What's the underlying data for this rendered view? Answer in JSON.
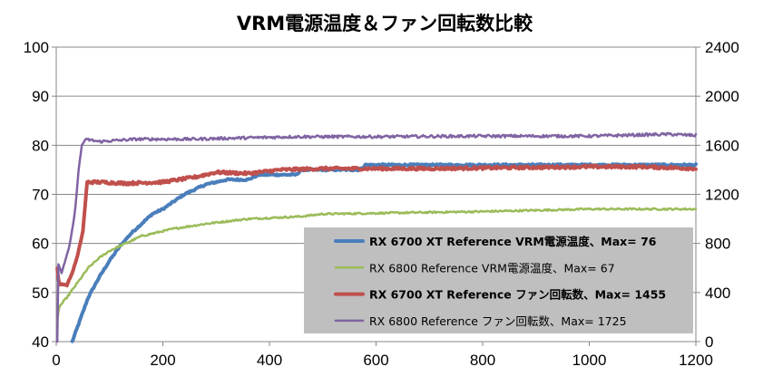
{
  "chart_data": {
    "type": "line",
    "title": "VRM電源温度＆ファン回転数比較",
    "x_axis": {
      "range": [
        0,
        1200
      ],
      "ticks": [
        "0",
        "200",
        "400",
        "600",
        "800",
        "1000",
        "1200"
      ],
      "tick_values": [
        0,
        200,
        400,
        600,
        800,
        1000,
        1200
      ]
    },
    "y_left": {
      "range": [
        40,
        100
      ],
      "ticks": [
        "40",
        "50",
        "60",
        "70",
        "80",
        "90",
        "100"
      ],
      "tick_values": [
        40,
        50,
        60,
        70,
        80,
        90,
        100
      ]
    },
    "y_right": {
      "range": [
        0,
        2400
      ],
      "ticks": [
        "0",
        "400",
        "800",
        "1200",
        "1600",
        "2000",
        "2400"
      ],
      "tick_values": [
        0,
        400,
        800,
        1200,
        1600,
        2000,
        2400
      ]
    },
    "grid": "horizontal",
    "legend_position": "bottom-right",
    "series": [
      {
        "name": "RX 6700 XT Reference VRM電源温度、Max= 76",
        "axis": "left",
        "color": "#4a7ebb",
        "bold": true,
        "stepped": true,
        "points": [
          [
            30,
            40
          ],
          [
            40,
            43
          ],
          [
            60,
            49
          ],
          [
            80,
            53
          ],
          [
            100,
            56.5
          ],
          [
            120,
            59.5
          ],
          [
            140,
            62
          ],
          [
            160,
            64
          ],
          [
            180,
            66
          ],
          [
            200,
            67
          ],
          [
            220,
            68.5
          ],
          [
            240,
            70
          ],
          [
            260,
            71
          ],
          [
            280,
            72
          ],
          [
            300,
            72.5
          ],
          [
            320,
            73
          ],
          [
            360,
            73
          ],
          [
            380,
            74
          ],
          [
            450,
            74
          ],
          [
            460,
            75
          ],
          [
            570,
            75
          ],
          [
            580,
            76
          ],
          [
            1200,
            76
          ]
        ]
      },
      {
        "name": "RX 6800 Reference VRM電源温度、Max= 67",
        "axis": "left",
        "color": "#9bbb59",
        "bold": false,
        "stepped": true,
        "points": [
          [
            2,
            44
          ],
          [
            5,
            47
          ],
          [
            20,
            49
          ],
          [
            40,
            52
          ],
          [
            60,
            55
          ],
          [
            80,
            57
          ],
          [
            100,
            58.5
          ],
          [
            120,
            59.5
          ],
          [
            140,
            60.5
          ],
          [
            160,
            61.5
          ],
          [
            180,
            62
          ],
          [
            200,
            62.5
          ],
          [
            220,
            63
          ],
          [
            250,
            63.5
          ],
          [
            280,
            64
          ],
          [
            320,
            64.5
          ],
          [
            360,
            65
          ],
          [
            460,
            65.5
          ],
          [
            500,
            66
          ],
          [
            800,
            66.5
          ],
          [
            1000,
            67
          ],
          [
            1200,
            67
          ]
        ]
      },
      {
        "name": "RX 6700 XT Reference ファン回転数、Max= 1455",
        "axis": "right",
        "color": "#c0504d",
        "bold": true,
        "stepped": false,
        "points": [
          [
            2,
            600
          ],
          [
            5,
            460
          ],
          [
            10,
            470
          ],
          [
            20,
            460
          ],
          [
            30,
            560
          ],
          [
            40,
            700
          ],
          [
            50,
            900
          ],
          [
            58,
            1300
          ],
          [
            80,
            1300
          ],
          [
            130,
            1290
          ],
          [
            200,
            1300
          ],
          [
            260,
            1340
          ],
          [
            300,
            1380
          ],
          [
            360,
            1370
          ],
          [
            420,
            1400
          ],
          [
            500,
            1410
          ],
          [
            600,
            1410
          ],
          [
            700,
            1410
          ],
          [
            800,
            1415
          ],
          [
            900,
            1420
          ],
          [
            1000,
            1425
          ],
          [
            1100,
            1425
          ],
          [
            1200,
            1410
          ]
        ]
      },
      {
        "name": "RX 6800 Reference ファン回転数、Max= 1725",
        "axis": "right",
        "color": "#8064a2",
        "bold": false,
        "stepped": false,
        "points": [
          [
            2,
            0
          ],
          [
            3,
            640
          ],
          [
            10,
            560
          ],
          [
            25,
            780
          ],
          [
            35,
            1050
          ],
          [
            42,
            1400
          ],
          [
            48,
            1600
          ],
          [
            55,
            1650
          ],
          [
            80,
            1630
          ],
          [
            150,
            1650
          ],
          [
            250,
            1650
          ],
          [
            350,
            1660
          ],
          [
            450,
            1670
          ],
          [
            600,
            1670
          ],
          [
            800,
            1675
          ],
          [
            1000,
            1675
          ],
          [
            1150,
            1690
          ],
          [
            1200,
            1680
          ]
        ]
      }
    ]
  }
}
